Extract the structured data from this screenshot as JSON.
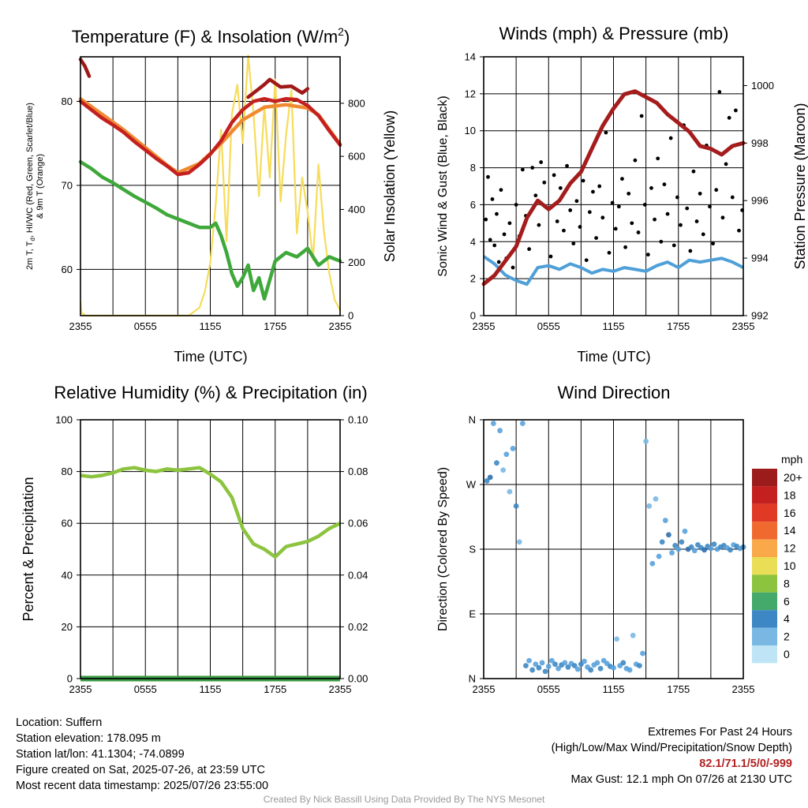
{
  "colors": {
    "temperature": "#c42020",
    "heat_index": "#f08a30",
    "dewpoint": "#3ea83a",
    "insolation": "#f6dc5a",
    "wind": "#4f9fd8",
    "gust": "#000000",
    "pressure": "#a51c1c",
    "humidity": "#8cc43f",
    "precip": "#3a9a44"
  },
  "x_ticks": [
    "2355",
    "0555",
    "1155",
    "1755",
    "2355"
  ],
  "panels": {
    "temperature": {
      "title": "Temperature (F) & Insolation (W/m",
      "title_sup": "2",
      "title_end": ")",
      "ylabel_left_line1": "2m T, T",
      "ylabel_left_sub": "d",
      "ylabel_left_line1_rest": ", HI/WC (Red, Green, Scarlet/Blue)",
      "ylabel_left_line2": "& 9m T (Orange)",
      "ylabel_right": "Solar Insolation (Yellow)",
      "xlabel": "Time (UTC)",
      "ticks_left": [
        "60",
        "70",
        "80"
      ],
      "ticks_right": [
        "0",
        "200",
        "400",
        "600",
        "800"
      ]
    },
    "wind": {
      "title": "Winds (mph) & Pressure (mb)",
      "ylabel_left": "Sonic Wind & Gust (Blue, Black)",
      "ylabel_right": "Station Pressure (Maroon)",
      "xlabel": "Time (UTC)",
      "ticks_left": [
        "0",
        "2",
        "4",
        "6",
        "8",
        "10",
        "12",
        "14"
      ],
      "ticks_right": [
        "992",
        "994",
        "996",
        "998",
        "1000"
      ]
    },
    "humidity": {
      "title": "Relative Humidity (%) & Precipitation (in)",
      "ylabel_left": "Percent & Precipitation",
      "ticks_left": [
        "0",
        "20",
        "40",
        "60",
        "80",
        "100"
      ],
      "ticks_right": [
        "0.00",
        "0.02",
        "0.04",
        "0.06",
        "0.08",
        "0.10"
      ]
    },
    "direction": {
      "title": "Wind Direction",
      "ylabel_left": "Direction (Colored By Speed)",
      "ticks_left": [
        "N",
        "E",
        "S",
        "W",
        "N"
      ]
    }
  },
  "colorbar": {
    "unit": "mph",
    "labels": [
      "20+",
      "18",
      "16",
      "14",
      "12",
      "10",
      "8",
      "6",
      "4",
      "2",
      "0"
    ],
    "colors": [
      "#9c1c1c",
      "#c42020",
      "#e03a26",
      "#f06a30",
      "#f9a84a",
      "#e9de55",
      "#8cc43f",
      "#44a96a",
      "#3d88c4",
      "#7ab8e4",
      "#bfe4f6"
    ]
  },
  "info_left": {
    "location": "Location: Suffern",
    "elevation": "Station elevation: 178.095 m",
    "latlon": "Station lat/lon: 41.1304; -74.0899",
    "created": "Figure created on Sat, 2025-07-26, at 23:59 UTC",
    "recent": "Most recent data timestamp: 2025/07/26 23:55:00"
  },
  "info_right": {
    "line1": "Extremes For Past 24 Hours",
    "line2": "(High/Low/Max Wind/Precipitation/Snow Depth)",
    "values": "82.1/71.1/5/0/-999",
    "gust": "Max Gust: 12.1 mph On 07/26 at 2130 UTC"
  },
  "credit": "Created By Nick Bassill Using Data Provided By The NYS Mesonet",
  "chart_data": [
    {
      "type": "line",
      "title": "Temperature (F) & Insolation (W/m2)",
      "xlabel": "Time (UTC)",
      "ylabel": "2m T, Td, HI/WC (Red, Green, Scarlet/Blue) & 9m T (Orange)",
      "y2label": "Solar Insolation (Yellow)",
      "x_hours": [
        0,
        24
      ],
      "ylim": [
        54.5,
        85.3
      ],
      "y2lim": [
        0,
        975
      ],
      "grid": true,
      "series": [
        {
          "name": "2m T",
          "axis": "left",
          "x": [
            0,
            1,
            2,
            3,
            4,
            5,
            6,
            7,
            8,
            9,
            10,
            11,
            12,
            13,
            14,
            15,
            16,
            17,
            18,
            19,
            20,
            21,
            22,
            23,
            24
          ],
          "values": [
            80.0,
            79.0,
            78.0,
            77.2,
            76.3,
            75.2,
            74.2,
            73.2,
            72.3,
            71.3,
            71.5,
            72.5,
            73.7,
            75.3,
            77.5,
            79.0,
            80.0,
            80.3,
            80.0,
            80.3,
            80.2,
            79.5,
            78.3,
            76.5,
            74.8
          ]
        },
        {
          "name": "9m T",
          "axis": "left",
          "x": [
            0,
            4,
            8,
            9,
            11,
            13,
            15,
            17,
            19,
            21,
            22,
            24
          ],
          "values": [
            80.3,
            76.6,
            72.4,
            71.5,
            72.6,
            75.0,
            77.8,
            79.3,
            79.6,
            79.2,
            78.4,
            74.9
          ]
        },
        {
          "name": "Heat index (2m)",
          "axis": "left",
          "x": [
            0,
            0.4,
            0.8,
            14.5,
            15.5,
            16.5,
            17.0,
            17.5,
            18.5,
            19.5,
            20.5,
            21.0
          ],
          "values": [
            85.0,
            84.2,
            83.0,
            null,
            80.5,
            81.5,
            82.0,
            82.6,
            81.7,
            81.8,
            81.0,
            81.5
          ]
        },
        {
          "name": "2m Td",
          "axis": "left",
          "x": [
            0,
            1,
            2,
            3,
            4,
            5,
            6,
            7,
            8,
            9,
            10,
            11,
            12,
            12.5,
            13,
            13.5,
            14,
            14.5,
            15,
            15.5,
            16,
            16.5,
            17,
            18,
            19,
            20,
            21,
            22,
            23,
            24
          ],
          "values": [
            72.8,
            72.0,
            71.0,
            70.3,
            69.5,
            68.7,
            68.0,
            67.3,
            66.5,
            66.0,
            65.5,
            65.0,
            65.0,
            65.5,
            64.0,
            62.0,
            59.5,
            58.0,
            59.0,
            60.5,
            57.5,
            59.0,
            56.5,
            61.0,
            62.0,
            61.5,
            62.5,
            60.5,
            61.5,
            61.0
          ]
        },
        {
          "name": "Insolation",
          "axis": "right",
          "x": [
            0,
            0.1,
            0.5,
            2,
            4,
            6,
            8,
            9,
            10,
            11,
            11.5,
            12,
            12.5,
            13,
            13.5,
            14,
            14.5,
            15,
            15.5,
            16,
            16.5,
            17,
            17.5,
            18,
            18.5,
            19,
            19.5,
            20,
            20.5,
            21,
            21.5,
            22,
            22.5,
            23,
            23.5,
            24
          ],
          "values": [
            50,
            10,
            0,
            0,
            0,
            0,
            0,
            0,
            0,
            30,
            90,
            200,
            420,
            700,
            280,
            760,
            870,
            650,
            980,
            760,
            450,
            790,
            520,
            890,
            430,
            680,
            850,
            310,
            520,
            390,
            210,
            570,
            320,
            160,
            60,
            20
          ]
        }
      ]
    },
    {
      "type": "scatter",
      "title": "Winds (mph) & Pressure (mb)",
      "xlabel": "Time (UTC)",
      "ylabel": "Sonic Wind & Gust (Blue, Black)",
      "y2label": "Station Pressure (Maroon)",
      "x_hours": [
        0,
        24
      ],
      "ylim": [
        0,
        14
      ],
      "y2lim": [
        992,
        1001
      ],
      "grid": true,
      "series": [
        {
          "name": "Station Pressure",
          "axis": "right",
          "x": [
            0,
            1,
            2,
            3,
            4,
            5,
            6,
            7,
            8,
            9,
            10,
            11,
            12,
            13,
            14,
            15,
            16,
            17,
            18,
            19,
            20,
            21,
            22,
            23,
            24
          ],
          "values": [
            993.1,
            993.4,
            993.9,
            994.4,
            995.4,
            996.0,
            995.7,
            996.0,
            996.6,
            997.0,
            997.8,
            998.6,
            999.2,
            999.7,
            999.8,
            999.6,
            999.4,
            999.0,
            998.7,
            998.4,
            997.9,
            997.8,
            997.6,
            997.9,
            998.0
          ]
        },
        {
          "name": "Sonic Wind",
          "axis": "left",
          "x": [
            0,
            1,
            2,
            3,
            4,
            5,
            6,
            7,
            8,
            9,
            10,
            11,
            12,
            13,
            14,
            15,
            16,
            17,
            18,
            19,
            20,
            21,
            22,
            23,
            24
          ],
          "values": [
            3.2,
            2.8,
            2.2,
            1.9,
            1.7,
            2.6,
            2.7,
            2.5,
            2.8,
            2.6,
            2.3,
            2.5,
            2.4,
            2.6,
            2.5,
            2.4,
            2.7,
            2.9,
            2.6,
            3.0,
            2.9,
            3.0,
            3.1,
            2.9,
            2.6
          ]
        },
        {
          "name": "Gust",
          "axis": "left",
          "x": [
            0.2,
            0.4,
            0.6,
            0.8,
            1.0,
            1.2,
            1.4,
            1.6,
            1.9,
            2.1,
            2.4,
            2.7,
            3.0,
            3.3,
            3.6,
            3.9,
            4.2,
            4.5,
            4.8,
            5.1,
            5.3,
            5.6,
            5.9,
            6.2,
            6.5,
            6.8,
            7.1,
            7.4,
            7.7,
            8.0,
            8.3,
            8.6,
            8.9,
            9.2,
            9.5,
            9.8,
            10.1,
            10.4,
            10.7,
            11.0,
            11.3,
            11.6,
            11.9,
            12.2,
            12.5,
            12.8,
            13.1,
            13.4,
            13.7,
            14.0,
            14.3,
            14.6,
            14.9,
            15.2,
            15.5,
            15.8,
            16.1,
            16.4,
            16.7,
            17.0,
            17.3,
            17.6,
            17.9,
            18.2,
            18.5,
            18.8,
            19.1,
            19.4,
            19.7,
            20.0,
            20.3,
            20.6,
            20.9,
            21.2,
            21.5,
            21.8,
            22.1,
            22.4,
            22.7,
            23.0,
            23.3,
            23.6,
            23.9
          ],
          "values": [
            5.2,
            7.5,
            4.1,
            6.3,
            3.8,
            5.5,
            2.9,
            6.8,
            4.4,
            3.1,
            5.0,
            2.6,
            6.0,
            4.3,
            7.9,
            5.4,
            3.6,
            8.0,
            6.5,
            4.9,
            8.3,
            7.2,
            5.8,
            3.2,
            7.6,
            5.1,
            6.9,
            4.6,
            8.1,
            5.7,
            3.9,
            6.2,
            4.8,
            7.3,
            3.0,
            5.6,
            6.7,
            4.2,
            7.0,
            5.3,
            9.9,
            3.4,
            6.1,
            4.7,
            5.9,
            7.4,
            3.7,
            6.6,
            5.0,
            8.4,
            4.5,
            10.8,
            6.0,
            3.3,
            6.9,
            5.2,
            8.5,
            4.0,
            7.1,
            5.5,
            9.6,
            3.8,
            6.4,
            4.9,
            10.3,
            5.8,
            3.5,
            7.8,
            5.1,
            6.6,
            4.4,
            9.2,
            5.9,
            3.9,
            6.8,
            12.1,
            5.3,
            8.2,
            10.7,
            6.4,
            11.1,
            4.6,
            5.7
          ]
        }
      ]
    },
    {
      "type": "line",
      "title": "Relative Humidity (%) & Precipitation (in)",
      "xlabel": "",
      "ylabel": "Percent & Precipitation",
      "x_hours": [
        0,
        24
      ],
      "ylim": [
        0,
        100
      ],
      "y2lim": [
        0,
        0.1
      ],
      "grid": true,
      "series": [
        {
          "name": "Relative Humidity",
          "axis": "left",
          "x": [
            0,
            1,
            2,
            3,
            4,
            5,
            6,
            7,
            8,
            9,
            10,
            11,
            12,
            13,
            14,
            15,
            16,
            17,
            18,
            19,
            20,
            21,
            22,
            23,
            24
          ],
          "values": [
            78.5,
            78.0,
            78.5,
            79.5,
            81.0,
            81.5,
            80.5,
            80.0,
            81.0,
            80.5,
            81.0,
            81.5,
            79.0,
            76.0,
            70.0,
            58.0,
            52.0,
            50.0,
            47.0,
            51.0,
            52.0,
            53.0,
            55.0,
            58.0,
            60.0
          ]
        },
        {
          "name": "Precipitation",
          "axis": "right",
          "x": [
            0,
            24
          ],
          "values": [
            0.0,
            0.0
          ]
        }
      ]
    },
    {
      "type": "scatter",
      "title": "Wind Direction",
      "ylabel": "Direction (Colored By Speed)",
      "x_hours": [
        0,
        24
      ],
      "ylim": [
        0,
        360
      ],
      "yticks": [
        "N",
        "E",
        "S",
        "W",
        "N"
      ],
      "grid": true,
      "legend": "right",
      "series": [
        {
          "name": "Direction",
          "x": [
            0.3,
            0.6,
            0.9,
            1.2,
            1.5,
            1.8,
            2.1,
            2.4,
            2.7,
            3.0,
            3.3,
            3.6,
            3.9,
            4.2,
            4.5,
            4.8,
            5.1,
            5.4,
            5.7,
            6.0,
            6.3,
            6.6,
            6.9,
            7.2,
            7.5,
            7.8,
            8.1,
            8.4,
            8.7,
            9.0,
            9.3,
            9.6,
            9.9,
            10.2,
            10.5,
            10.8,
            11.1,
            11.4,
            11.7,
            12.0,
            12.3,
            12.6,
            12.9,
            13.2,
            13.5,
            13.8,
            14.1,
            14.4,
            14.7,
            15.0,
            15.3,
            15.6,
            15.9,
            16.2,
            16.5,
            16.8,
            17.1,
            17.4,
            17.7,
            18.0,
            18.3,
            18.6,
            18.9,
            19.2,
            19.5,
            19.8,
            20.1,
            20.4,
            20.7,
            21.0,
            21.3,
            21.6,
            21.9,
            22.2,
            22.5,
            22.8,
            23.1,
            23.4,
            23.7,
            24.0
          ],
          "values": [
            275,
            280,
            355,
            300,
            345,
            290,
            312,
            260,
            320,
            240,
            190,
            355,
            18,
            25,
            12,
            20,
            15,
            22,
            10,
            17,
            25,
            20,
            14,
            19,
            22,
            16,
            21,
            18,
            13,
            20,
            24,
            16,
            12,
            19,
            22,
            14,
            25,
            21,
            17,
            15,
            55,
            18,
            22,
            14,
            12,
            60,
            20,
            18,
            35,
            330,
            240,
            160,
            250,
            170,
            190,
            220,
            200,
            175,
            185,
            180,
            190,
            205,
            180,
            183,
            178,
            186,
            182,
            179,
            184,
            181,
            187,
            180,
            183,
            185,
            182,
            179,
            186,
            184,
            181,
            183
          ],
          "speeds": [
            3,
            4,
            2,
            3,
            2,
            1,
            2,
            1,
            2,
            3,
            1,
            2,
            3,
            2,
            3,
            2,
            3,
            2,
            3,
            2,
            2,
            3,
            2,
            3,
            2,
            3,
            2,
            3,
            2,
            3,
            2,
            2,
            3,
            2,
            2,
            3,
            2,
            2,
            3,
            2,
            1,
            2,
            3,
            2,
            2,
            1,
            2,
            3,
            2,
            1,
            1,
            2,
            1,
            2,
            3,
            2,
            4,
            2,
            3,
            2,
            3,
            2,
            4,
            3,
            2,
            3,
            3,
            4,
            3,
            2,
            3,
            2,
            3,
            3,
            2,
            3,
            2,
            3,
            2,
            3
          ]
        }
      ]
    }
  ]
}
